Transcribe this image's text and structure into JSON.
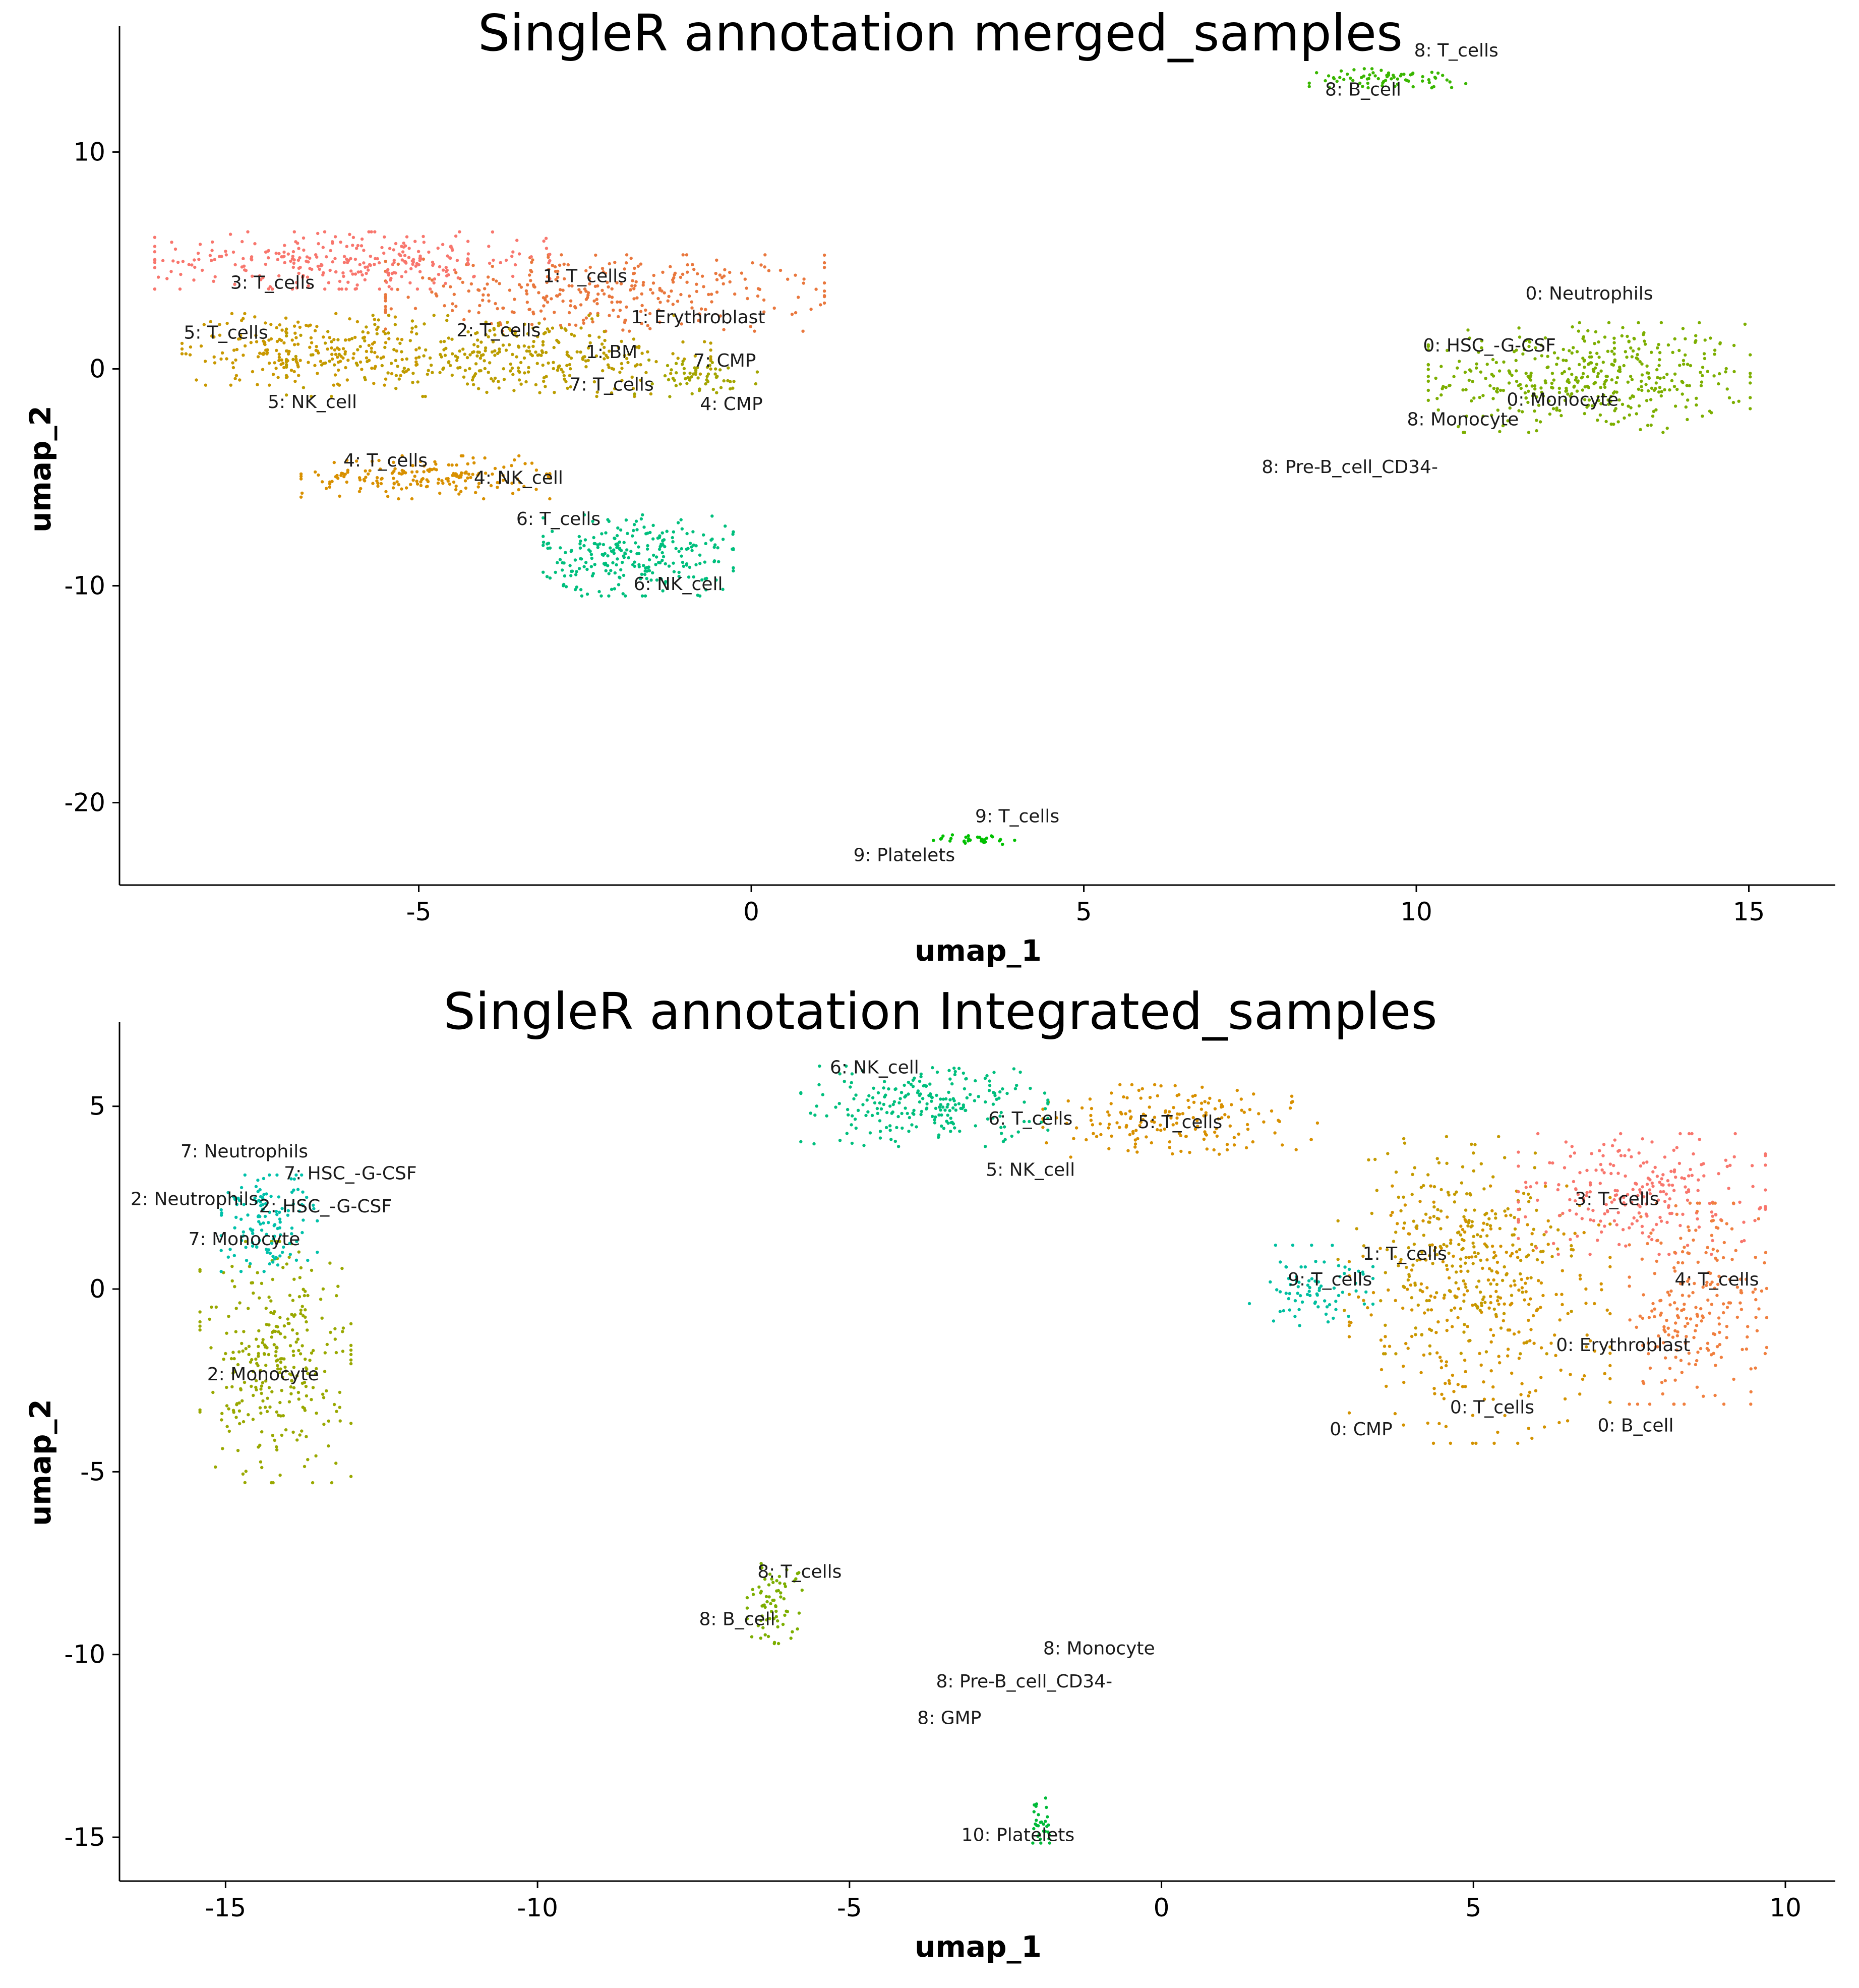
{
  "chart_data": [
    {
      "type": "scatter",
      "title": "SingleR annotation merged_samples",
      "xlabel": "umap_1",
      "ylabel": "umap_2",
      "xlim": [
        -9.5,
        16.3
      ],
      "ylim": [
        -23.8,
        15.8
      ],
      "xticks": [
        -5,
        0,
        5,
        10,
        15
      ],
      "yticks": [
        10,
        0,
        -10,
        -20
      ],
      "xtick_labels": [
        "-5",
        "0",
        "5",
        "10",
        "15"
      ],
      "ytick_labels": [
        "10",
        "0",
        "-10",
        "-20"
      ],
      "grid": false,
      "legend": "none",
      "clusters": [
        {
          "id": "0",
          "color": "#7CAE00",
          "cx": 12.6,
          "cy": -0.4,
          "rx": 2.2,
          "ry": 2.3,
          "n": 420
        },
        {
          "id": "1",
          "color": "#E9773D",
          "cx": -2.2,
          "cy": 3.5,
          "rx": 3.0,
          "ry": 1.6,
          "n": 320
        },
        {
          "id": "2",
          "color": "#BB9D00",
          "cx": -3.8,
          "cy": 0.6,
          "rx": 2.9,
          "ry": 1.7,
          "n": 360
        },
        {
          "id": "3",
          "color": "#F8766D",
          "cx": -6.0,
          "cy": 5.0,
          "rx": 2.7,
          "ry": 1.2,
          "n": 300
        },
        {
          "id": "4",
          "color": "#D89000",
          "cx": -4.9,
          "cy": -5.0,
          "rx": 1.7,
          "ry": 0.9,
          "n": 180
        },
        {
          "id": "5",
          "color": "#C99800",
          "cx": -6.8,
          "cy": 0.9,
          "rx": 1.6,
          "ry": 1.5,
          "n": 200
        },
        {
          "id": "6",
          "color": "#00BF7D",
          "cx": -1.7,
          "cy": -8.6,
          "rx": 1.3,
          "ry": 1.7,
          "n": 260
        },
        {
          "id": "7",
          "color": "#A3A500",
          "cx": -0.9,
          "cy": -0.4,
          "rx": 0.9,
          "ry": 0.8,
          "n": 60
        },
        {
          "id": "8",
          "color": "#39B600",
          "cx": 9.6,
          "cy": 13.4,
          "rx": 1.1,
          "ry": 0.4,
          "n": 70
        },
        {
          "id": "9",
          "color": "#00C000",
          "cx": 3.4,
          "cy": -21.7,
          "rx": 0.6,
          "ry": 0.2,
          "n": 30
        }
      ],
      "annotations": [
        {
          "text": "8: T_cells",
          "x": 10.6,
          "y": 14.4
        },
        {
          "text": "8: B_cell",
          "x": 9.2,
          "y": 12.6
        },
        {
          "text": "1: T_cells",
          "x": -2.5,
          "y": 4.0
        },
        {
          "text": "3: T_cells",
          "x": -7.2,
          "y": 3.7
        },
        {
          "text": "1: Erythroblast",
          "x": -0.8,
          "y": 2.1
        },
        {
          "text": "0: Neutrophils",
          "x": 12.6,
          "y": 3.2
        },
        {
          "text": "5: T_cells",
          "x": -7.9,
          "y": 1.4
        },
        {
          "text": "2: T_cells",
          "x": -3.8,
          "y": 1.5
        },
        {
          "text": "0: HSC_-G-CSF",
          "x": 11.1,
          "y": 0.8
        },
        {
          "text": "1: BM",
          "x": -2.1,
          "y": 0.5
        },
        {
          "text": "7: CMP",
          "x": -0.4,
          "y": 0.1
        },
        {
          "text": "7: T_cells",
          "x": -2.1,
          "y": -1.0
        },
        {
          "text": "0: Monocyte",
          "x": 12.2,
          "y": -1.7
        },
        {
          "text": "5: NK_cell",
          "x": -6.6,
          "y": -1.8
        },
        {
          "text": "4: CMP",
          "x": -0.3,
          "y": -1.9
        },
        {
          "text": "8: Monocyte",
          "x": 10.7,
          "y": -2.6
        },
        {
          "text": "4: T_cells",
          "x": -5.5,
          "y": -4.5
        },
        {
          "text": "8: Pre-B_cell_CD34-",
          "x": 9.0,
          "y": -4.8
        },
        {
          "text": "4: NK_cell",
          "x": -3.5,
          "y": -5.3
        },
        {
          "text": "6: T_cells",
          "x": -2.9,
          "y": -7.2
        },
        {
          "text": "6: NK_cell",
          "x": -1.1,
          "y": -10.2
        },
        {
          "text": "9: T_cells",
          "x": 4.0,
          "y": -20.9
        },
        {
          "text": "9: Platelets",
          "x": 2.3,
          "y": -22.7
        }
      ]
    },
    {
      "type": "scatter",
      "title": "SingleR annotation Integrated_samples",
      "xlabel": "umap_1",
      "ylabel": "umap_2",
      "xlim": [
        -16.7,
        10.8
      ],
      "ylim": [
        -16.2,
        7.3
      ],
      "xticks": [
        -15,
        -10,
        -5,
        0,
        5,
        10
      ],
      "yticks": [
        5,
        0,
        -5,
        -10,
        -15
      ],
      "xtick_labels": [
        "-15",
        "-10",
        "-5",
        "0",
        "5",
        "10"
      ],
      "ytick_labels": [
        "5",
        "0",
        "-5",
        "-10",
        "-15"
      ],
      "grid": false,
      "legend": "none",
      "clusters": [
        {
          "id": "0",
          "color": "#D39200",
          "cx": 5.1,
          "cy": -0.7,
          "rx": 1.9,
          "ry": 3.2,
          "n": 280
        },
        {
          "id": "1",
          "color": "#C49A00",
          "cx": 4.7,
          "cy": 1.2,
          "rx": 1.7,
          "ry": 2.7,
          "n": 240
        },
        {
          "id": "2",
          "color": "#99A800",
          "cx": -14.2,
          "cy": -2.0,
          "rx": 1.1,
          "ry": 3.0,
          "n": 300
        },
        {
          "id": "3",
          "color": "#F8766D",
          "cx": 7.7,
          "cy": 2.6,
          "rx": 1.8,
          "ry": 1.5,
          "n": 240
        },
        {
          "id": "4",
          "color": "#F07F3F",
          "cx": 8.6,
          "cy": -0.4,
          "rx": 1.0,
          "ry": 2.5,
          "n": 220
        },
        {
          "id": "5",
          "color": "#D89000",
          "cx": 0.3,
          "cy": 4.6,
          "rx": 2.0,
          "ry": 0.9,
          "n": 170
        },
        {
          "id": "6",
          "color": "#00BF7D",
          "cx": -3.8,
          "cy": 5.0,
          "rx": 1.8,
          "ry": 1.0,
          "n": 230
        },
        {
          "id": "7",
          "color": "#00C1AA",
          "cx": -14.3,
          "cy": 1.8,
          "rx": 0.7,
          "ry": 1.2,
          "n": 130
        },
        {
          "id": "8",
          "color": "#7CAE00",
          "cx": -6.2,
          "cy": -8.6,
          "rx": 0.4,
          "ry": 1.0,
          "n": 70
        },
        {
          "id": "9",
          "color": "#00BFA0",
          "cx": 2.4,
          "cy": 0.1,
          "rx": 0.9,
          "ry": 1.0,
          "n": 80
        },
        {
          "id": "10",
          "color": "#00BA38",
          "cx": -1.9,
          "cy": -14.5,
          "rx": 0.2,
          "ry": 0.6,
          "n": 30
        }
      ],
      "annotations": [
        {
          "text": "6: NK_cell",
          "x": -4.6,
          "y": 5.9
        },
        {
          "text": "6: T_cells",
          "x": -2.1,
          "y": 4.5
        },
        {
          "text": "5: T_cells",
          "x": 0.3,
          "y": 4.4
        },
        {
          "text": "7: Neutrophils",
          "x": -14.7,
          "y": 3.6
        },
        {
          "text": "7: HSC_-G-CSF",
          "x": -13.0,
          "y": 3.0
        },
        {
          "text": "5: NK_cell",
          "x": -2.1,
          "y": 3.1
        },
        {
          "text": "2: Neutrophils",
          "x": -15.5,
          "y": 2.3
        },
        {
          "text": "2: HSC_-G-CSF",
          "x": -13.4,
          "y": 2.1
        },
        {
          "text": "3: T_cells",
          "x": 7.3,
          "y": 2.3
        },
        {
          "text": "7: Monocyte",
          "x": -14.7,
          "y": 1.2
        },
        {
          "text": "1: T_cells",
          "x": 3.9,
          "y": 0.8
        },
        {
          "text": "9: T_cells",
          "x": 2.7,
          "y": 0.1
        },
        {
          "text": "4: T_cells",
          "x": 8.9,
          "y": 0.1
        },
        {
          "text": "2: Monocyte",
          "x": -14.4,
          "y": -2.5
        },
        {
          "text": "0: Erythroblast",
          "x": 7.4,
          "y": -1.7
        },
        {
          "text": "0: T_cells",
          "x": 5.3,
          "y": -3.4
        },
        {
          "text": "0: B_cell",
          "x": 7.6,
          "y": -3.9
        },
        {
          "text": "0: CMP",
          "x": 3.2,
          "y": -4.0
        },
        {
          "text": "8: T_cells",
          "x": -5.8,
          "y": -7.9
        },
        {
          "text": "8: B_cell",
          "x": -6.8,
          "y": -9.2
        },
        {
          "text": "8: Monocyte",
          "x": -1.0,
          "y": -10.0
        },
        {
          "text": "8: Pre-B_cell_CD34-",
          "x": -2.2,
          "y": -10.9
        },
        {
          "text": "8: GMP",
          "x": -3.4,
          "y": -11.9
        },
        {
          "text": "10: Platelets",
          "x": -2.3,
          "y": -15.1
        }
      ]
    }
  ]
}
